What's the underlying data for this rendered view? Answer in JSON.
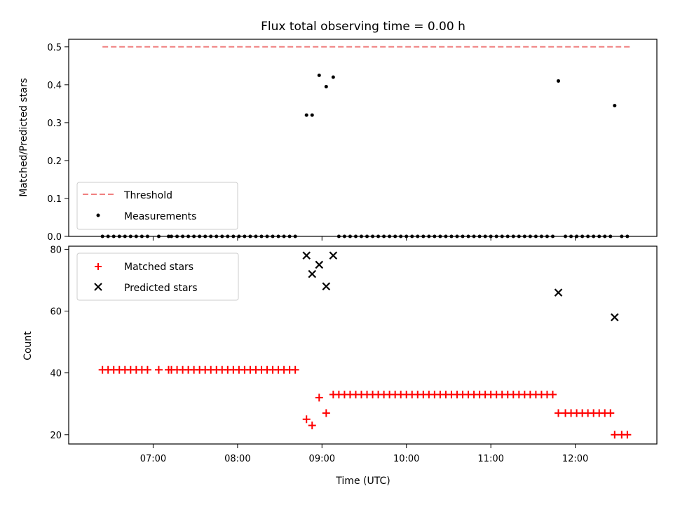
{
  "chart_data": [
    {
      "type": "scatter",
      "title": "Flux total observing time = 0.00 h",
      "ylabel": "Matched/Predicted stars",
      "ylim": [
        0,
        0.52
      ],
      "yticks": [
        "0.0",
        "0.1",
        "0.2",
        "0.3",
        "0.4",
        "0.5"
      ],
      "threshold": {
        "name": "Threshold",
        "value": 0.5,
        "x_start": "06:24",
        "x_end": "12:39",
        "color": "#f08080"
      },
      "series": [
        {
          "name": "Measurements",
          "color": "#000000",
          "points": [
            {
              "x": "06:24",
              "y": 0.0
            },
            {
              "x": "06:28",
              "y": 0.0
            },
            {
              "x": "06:32",
              "y": 0.0
            },
            {
              "x": "06:36",
              "y": 0.0
            },
            {
              "x": "06:40",
              "y": 0.0
            },
            {
              "x": "06:44",
              "y": 0.0
            },
            {
              "x": "06:48",
              "y": 0.0
            },
            {
              "x": "06:52",
              "y": 0.0
            },
            {
              "x": "06:56",
              "y": 0.0
            },
            {
              "x": "07:04",
              "y": 0.0
            },
            {
              "x": "07:11",
              "y": 0.0
            },
            {
              "x": "07:13",
              "y": 0.0
            },
            {
              "x": "07:17",
              "y": 0.0
            },
            {
              "x": "07:21",
              "y": 0.0
            },
            {
              "x": "07:25",
              "y": 0.0
            },
            {
              "x": "07:29",
              "y": 0.0
            },
            {
              "x": "07:33",
              "y": 0.0
            },
            {
              "x": "07:37",
              "y": 0.0
            },
            {
              "x": "07:41",
              "y": 0.0
            },
            {
              "x": "07:45",
              "y": 0.0
            },
            {
              "x": "07:49",
              "y": 0.0
            },
            {
              "x": "07:53",
              "y": 0.0
            },
            {
              "x": "07:57",
              "y": 0.0
            },
            {
              "x": "08:01",
              "y": 0.0
            },
            {
              "x": "08:05",
              "y": 0.0
            },
            {
              "x": "08:09",
              "y": 0.0
            },
            {
              "x": "08:13",
              "y": 0.0
            },
            {
              "x": "08:17",
              "y": 0.0
            },
            {
              "x": "08:21",
              "y": 0.0
            },
            {
              "x": "08:25",
              "y": 0.0
            },
            {
              "x": "08:29",
              "y": 0.0
            },
            {
              "x": "08:33",
              "y": 0.0
            },
            {
              "x": "08:37",
              "y": 0.0
            },
            {
              "x": "08:41",
              "y": 0.0
            },
            {
              "x": "08:49",
              "y": 0.32
            },
            {
              "x": "08:53",
              "y": 0.32
            },
            {
              "x": "08:58",
              "y": 0.425
            },
            {
              "x": "09:03",
              "y": 0.395
            },
            {
              "x": "09:08",
              "y": 0.42
            },
            {
              "x": "09:12",
              "y": 0.0
            },
            {
              "x": "09:16",
              "y": 0.0
            },
            {
              "x": "09:20",
              "y": 0.0
            },
            {
              "x": "09:24",
              "y": 0.0
            },
            {
              "x": "09:28",
              "y": 0.0
            },
            {
              "x": "09:32",
              "y": 0.0
            },
            {
              "x": "09:36",
              "y": 0.0
            },
            {
              "x": "09:40",
              "y": 0.0
            },
            {
              "x": "09:44",
              "y": 0.0
            },
            {
              "x": "09:48",
              "y": 0.0
            },
            {
              "x": "09:52",
              "y": 0.0
            },
            {
              "x": "09:56",
              "y": 0.0
            },
            {
              "x": "10:00",
              "y": 0.0
            },
            {
              "x": "10:04",
              "y": 0.0
            },
            {
              "x": "10:08",
              "y": 0.0
            },
            {
              "x": "10:12",
              "y": 0.0
            },
            {
              "x": "10:16",
              "y": 0.0
            },
            {
              "x": "10:20",
              "y": 0.0
            },
            {
              "x": "10:24",
              "y": 0.0
            },
            {
              "x": "10:28",
              "y": 0.0
            },
            {
              "x": "10:32",
              "y": 0.0
            },
            {
              "x": "10:36",
              "y": 0.0
            },
            {
              "x": "10:40",
              "y": 0.0
            },
            {
              "x": "10:44",
              "y": 0.0
            },
            {
              "x": "10:48",
              "y": 0.0
            },
            {
              "x": "10:52",
              "y": 0.0
            },
            {
              "x": "10:56",
              "y": 0.0
            },
            {
              "x": "11:00",
              "y": 0.0
            },
            {
              "x": "11:04",
              "y": 0.0
            },
            {
              "x": "11:08",
              "y": 0.0
            },
            {
              "x": "11:12",
              "y": 0.0
            },
            {
              "x": "11:16",
              "y": 0.0
            },
            {
              "x": "11:20",
              "y": 0.0
            },
            {
              "x": "11:24",
              "y": 0.0
            },
            {
              "x": "11:28",
              "y": 0.0
            },
            {
              "x": "11:32",
              "y": 0.0
            },
            {
              "x": "11:36",
              "y": 0.0
            },
            {
              "x": "11:40",
              "y": 0.0
            },
            {
              "x": "11:44",
              "y": 0.0
            },
            {
              "x": "11:48",
              "y": 0.41
            },
            {
              "x": "11:53",
              "y": 0.0
            },
            {
              "x": "11:57",
              "y": 0.0
            },
            {
              "x": "12:01",
              "y": 0.0
            },
            {
              "x": "12:05",
              "y": 0.0
            },
            {
              "x": "12:09",
              "y": 0.0
            },
            {
              "x": "12:13",
              "y": 0.0
            },
            {
              "x": "12:17",
              "y": 0.0
            },
            {
              "x": "12:21",
              "y": 0.0
            },
            {
              "x": "12:25",
              "y": 0.0
            },
            {
              "x": "12:28",
              "y": 0.345
            },
            {
              "x": "12:33",
              "y": 0.0
            },
            {
              "x": "12:37",
              "y": 0.0
            }
          ]
        }
      ],
      "legend_position": "lower-left"
    },
    {
      "type": "scatter",
      "ylabel": "Count",
      "xlabel": "Time (UTC)",
      "ylim": [
        17,
        81
      ],
      "yticks": [
        "20",
        "40",
        "60",
        "80"
      ],
      "xlim": [
        "06:00",
        "12:58"
      ],
      "xticks": [
        "07:00",
        "08:00",
        "09:00",
        "10:00",
        "11:00",
        "12:00"
      ],
      "series": [
        {
          "name": "Matched stars",
          "marker": "plus",
          "color": "#ff0000",
          "points": [
            {
              "x": "06:24",
              "y": 41
            },
            {
              "x": "06:28",
              "y": 41
            },
            {
              "x": "06:32",
              "y": 41
            },
            {
              "x": "06:36",
              "y": 41
            },
            {
              "x": "06:40",
              "y": 41
            },
            {
              "x": "06:44",
              "y": 41
            },
            {
              "x": "06:48",
              "y": 41
            },
            {
              "x": "06:52",
              "y": 41
            },
            {
              "x": "06:56",
              "y": 41
            },
            {
              "x": "07:04",
              "y": 41
            },
            {
              "x": "07:11",
              "y": 41
            },
            {
              "x": "07:13",
              "y": 41
            },
            {
              "x": "07:17",
              "y": 41
            },
            {
              "x": "07:21",
              "y": 41
            },
            {
              "x": "07:25",
              "y": 41
            },
            {
              "x": "07:29",
              "y": 41
            },
            {
              "x": "07:33",
              "y": 41
            },
            {
              "x": "07:37",
              "y": 41
            },
            {
              "x": "07:41",
              "y": 41
            },
            {
              "x": "07:45",
              "y": 41
            },
            {
              "x": "07:49",
              "y": 41
            },
            {
              "x": "07:53",
              "y": 41
            },
            {
              "x": "07:57",
              "y": 41
            },
            {
              "x": "08:01",
              "y": 41
            },
            {
              "x": "08:05",
              "y": 41
            },
            {
              "x": "08:09",
              "y": 41
            },
            {
              "x": "08:13",
              "y": 41
            },
            {
              "x": "08:17",
              "y": 41
            },
            {
              "x": "08:21",
              "y": 41
            },
            {
              "x": "08:25",
              "y": 41
            },
            {
              "x": "08:29",
              "y": 41
            },
            {
              "x": "08:33",
              "y": 41
            },
            {
              "x": "08:37",
              "y": 41
            },
            {
              "x": "08:41",
              "y": 41
            },
            {
              "x": "08:49",
              "y": 25
            },
            {
              "x": "08:53",
              "y": 23
            },
            {
              "x": "08:58",
              "y": 32
            },
            {
              "x": "09:03",
              "y": 27
            },
            {
              "x": "09:08",
              "y": 33
            },
            {
              "x": "09:12",
              "y": 33
            },
            {
              "x": "09:16",
              "y": 33
            },
            {
              "x": "09:20",
              "y": 33
            },
            {
              "x": "09:24",
              "y": 33
            },
            {
              "x": "09:28",
              "y": 33
            },
            {
              "x": "09:32",
              "y": 33
            },
            {
              "x": "09:36",
              "y": 33
            },
            {
              "x": "09:40",
              "y": 33
            },
            {
              "x": "09:44",
              "y": 33
            },
            {
              "x": "09:48",
              "y": 33
            },
            {
              "x": "09:52",
              "y": 33
            },
            {
              "x": "09:56",
              "y": 33
            },
            {
              "x": "10:00",
              "y": 33
            },
            {
              "x": "10:04",
              "y": 33
            },
            {
              "x": "10:08",
              "y": 33
            },
            {
              "x": "10:12",
              "y": 33
            },
            {
              "x": "10:16",
              "y": 33
            },
            {
              "x": "10:20",
              "y": 33
            },
            {
              "x": "10:24",
              "y": 33
            },
            {
              "x": "10:28",
              "y": 33
            },
            {
              "x": "10:32",
              "y": 33
            },
            {
              "x": "10:36",
              "y": 33
            },
            {
              "x": "10:40",
              "y": 33
            },
            {
              "x": "10:44",
              "y": 33
            },
            {
              "x": "10:48",
              "y": 33
            },
            {
              "x": "10:52",
              "y": 33
            },
            {
              "x": "10:56",
              "y": 33
            },
            {
              "x": "11:00",
              "y": 33
            },
            {
              "x": "11:04",
              "y": 33
            },
            {
              "x": "11:08",
              "y": 33
            },
            {
              "x": "11:12",
              "y": 33
            },
            {
              "x": "11:16",
              "y": 33
            },
            {
              "x": "11:20",
              "y": 33
            },
            {
              "x": "11:24",
              "y": 33
            },
            {
              "x": "11:28",
              "y": 33
            },
            {
              "x": "11:32",
              "y": 33
            },
            {
              "x": "11:36",
              "y": 33
            },
            {
              "x": "11:40",
              "y": 33
            },
            {
              "x": "11:44",
              "y": 33
            },
            {
              "x": "11:48",
              "y": 27
            },
            {
              "x": "11:53",
              "y": 27
            },
            {
              "x": "11:57",
              "y": 27
            },
            {
              "x": "12:01",
              "y": 27
            },
            {
              "x": "12:05",
              "y": 27
            },
            {
              "x": "12:09",
              "y": 27
            },
            {
              "x": "12:13",
              "y": 27
            },
            {
              "x": "12:17",
              "y": 27
            },
            {
              "x": "12:21",
              "y": 27
            },
            {
              "x": "12:25",
              "y": 27
            },
            {
              "x": "12:28",
              "y": 20
            },
            {
              "x": "12:33",
              "y": 20
            },
            {
              "x": "12:37",
              "y": 20
            }
          ]
        },
        {
          "name": "Predicted stars",
          "marker": "x",
          "color": "#000000",
          "points": [
            {
              "x": "08:49",
              "y": 78
            },
            {
              "x": "08:53",
              "y": 72
            },
            {
              "x": "08:58",
              "y": 75
            },
            {
              "x": "09:03",
              "y": 68
            },
            {
              "x": "09:08",
              "y": 78
            },
            {
              "x": "11:48",
              "y": 66
            },
            {
              "x": "12:28",
              "y": 58
            }
          ]
        }
      ],
      "legend_position": "upper-left"
    }
  ]
}
